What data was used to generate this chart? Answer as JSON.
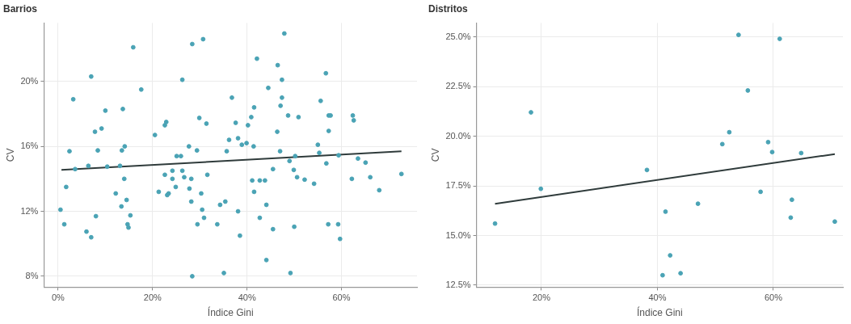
{
  "chart_data": [
    {
      "type": "scatter",
      "title": "Barrios",
      "xlabel": "Índice Gini",
      "ylabel": "CV",
      "grid": true,
      "marker": "circle",
      "xlim": [
        -3,
        76
      ],
      "ylim": [
        7.33,
        23.6
      ],
      "xticks": [
        {
          "value": 0,
          "label": "0%"
        },
        {
          "value": 20,
          "label": "20%"
        },
        {
          "value": 40,
          "label": "40%"
        },
        {
          "value": 60,
          "label": "60%"
        }
      ],
      "yticks": [
        {
          "value": 8,
          "label": "8%"
        },
        {
          "value": 12,
          "label": "12%"
        },
        {
          "value": 16,
          "label": "16%"
        },
        {
          "value": 20,
          "label": "20%"
        }
      ],
      "series": [
        {
          "color": "#4aa3b5",
          "x": [
            0.5,
            1.3,
            1.7,
            2.4,
            3.2,
            3.6,
            6.0,
            7.0,
            7.0,
            6.4,
            7.8,
            8.0,
            8.4,
            9.2,
            10.0,
            10.4,
            12.2,
            13.1,
            13.4,
            13.5,
            13.7,
            14.1,
            14.0,
            14.5,
            14.7,
            14.9,
            15.3,
            15.9,
            17.6,
            20.5,
            21.3,
            22.6,
            22.6,
            22.9,
            23.1,
            23.4,
            24.2,
            24.2,
            24.9,
            25.1,
            26.0,
            26.3,
            26.3,
            26.7,
            27.7,
            27.8,
            28.2,
            28.2,
            28.4,
            28.4,
            29.4,
            29.5,
            29.9,
            30.3,
            30.5,
            30.7,
            30.9,
            31.4,
            31.6,
            33.7,
            34.3,
            35.4,
            35.1,
            35.7,
            36.2,
            36.8,
            37.6,
            38.1,
            38.1,
            38.5,
            38.9,
            39.9,
            40.2,
            40.9,
            41.4,
            41.1,
            41.5,
            41.5,
            42.1,
            42.7,
            42.7,
            43.8,
            44.1,
            44.1,
            44.5,
            45.5,
            45.5,
            46.4,
            46.5,
            47.0,
            47.1,
            47.4,
            47.4,
            47.9,
            48.7,
            49.0,
            49.9,
            50.0,
            49.2,
            50.2,
            50.6,
            50.9,
            52.2,
            54.2,
            55.0,
            55.3,
            55.6,
            56.7,
            56.8,
            57.2,
            57.3,
            57.3,
            57.7,
            59.3,
            59.4,
            59.7,
            62.2,
            62.4,
            62.6,
            63.5,
            65.1,
            66.1,
            68.0,
            72.7
          ],
          "values": [
            12.1,
            11.2,
            13.5,
            15.7,
            18.9,
            14.6,
            10.75,
            10.4,
            20.3,
            14.8,
            16.9,
            11.7,
            15.75,
            17.1,
            18.2,
            14.75,
            13.1,
            14.8,
            12.3,
            15.75,
            18.3,
            16.0,
            14.0,
            12.7,
            11.2,
            11.0,
            11.75,
            22.1,
            19.5,
            16.7,
            13.2,
            14.25,
            17.3,
            17.5,
            13.0,
            13.1,
            14.5,
            14.0,
            13.5,
            15.4,
            15.4,
            20.1,
            14.5,
            14.1,
            16.0,
            13.4,
            14.0,
            12.6,
            22.3,
            8.0,
            15.75,
            11.2,
            17.75,
            13.1,
            12.1,
            22.6,
            11.6,
            17.4,
            14.25,
            11.2,
            12.4,
            12.6,
            8.2,
            15.7,
            16.4,
            19.0,
            17.45,
            16.5,
            12.0,
            10.5,
            16.1,
            16.2,
            17.3,
            17.8,
            16.0,
            13.9,
            18.4,
            13.2,
            21.4,
            13.9,
            11.6,
            13.9,
            9.0,
            12.4,
            19.6,
            14.6,
            10.9,
            16.9,
            21.0,
            15.7,
            18.5,
            19.0,
            20.1,
            22.95,
            17.9,
            15.1,
            14.55,
            11.05,
            8.2,
            15.4,
            14.1,
            17.8,
            13.95,
            13.7,
            16.1,
            15.6,
            18.8,
            20.5,
            14.95,
            11.2,
            16.95,
            17.9,
            17.9,
            11.2,
            15.45,
            10.3,
            14.0,
            17.9,
            17.6,
            15.25,
            15.0,
            14.1,
            13.3,
            14.3
          ]
        },
        {
          "type": "line",
          "color": "#2f3b3b",
          "marker": "none",
          "x": [
            0.7,
            72.7
          ],
          "values": [
            14.55,
            15.7
          ]
        }
      ]
    },
    {
      "type": "scatter",
      "title": "Distritos",
      "xlabel": "Índice Gini",
      "ylabel": "CV",
      "grid": true,
      "marker": "circle",
      "xlim": [
        8.8,
        72
      ],
      "ylim": [
        12.4,
        25.7
      ],
      "xticks": [
        {
          "value": 20,
          "label": "20%"
        },
        {
          "value": 40,
          "label": "40%"
        },
        {
          "value": 60,
          "label": "60%"
        }
      ],
      "yticks": [
        {
          "value": 12.5,
          "label": "12.5%"
        },
        {
          "value": 15,
          "label": "15.0%"
        },
        {
          "value": 17.5,
          "label": "17.5%"
        },
        {
          "value": 20,
          "label": "20.0%"
        },
        {
          "value": 22.5,
          "label": "22.5%"
        },
        {
          "value": 25,
          "label": "25.0%"
        }
      ],
      "series": [
        {
          "color": "#4aa3b5",
          "x": [
            12.0,
            18.2,
            19.9,
            38.2,
            41.4,
            42.2,
            40.9,
            44.0,
            47.0,
            51.2,
            52.4,
            54.0,
            55.6,
            57.8,
            59.1,
            59.8,
            61.1,
            63.0,
            63.2,
            64.8,
            70.6
          ],
          "values": [
            15.6,
            21.2,
            17.35,
            18.3,
            16.2,
            14.0,
            13.0,
            13.1,
            16.6,
            19.6,
            20.2,
            25.1,
            22.3,
            17.2,
            19.7,
            19.2,
            24.9,
            15.9,
            16.8,
            19.15,
            15.7
          ]
        },
        {
          "type": "line",
          "color": "#2f3b3b",
          "marker": "none",
          "x": [
            12.0,
            70.6
          ],
          "values": [
            16.6,
            19.1
          ]
        }
      ]
    }
  ]
}
